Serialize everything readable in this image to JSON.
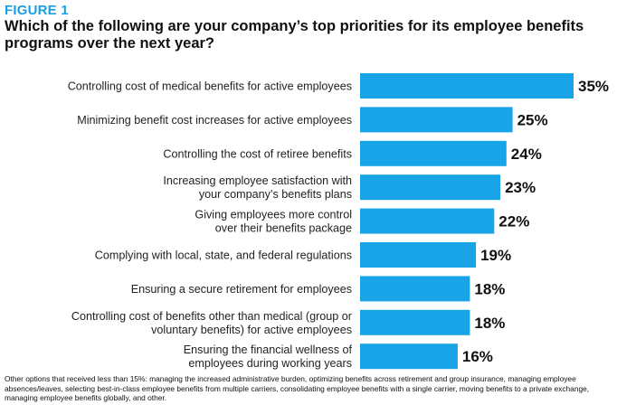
{
  "figure_label": "FIGURE 1",
  "title": "Which of the following are your company’s top priorities for its employee benefits programs over the next year?",
  "footnote": "Other options that received less than 15%: managing the increased administrative burden, optimizing benefits across retirement and group insurance, managing employee absences/leaves, selecting best-in-class employee benefits from multiple carriers, consolidating employee benefits with a single carrier, moving benefits to a private exchange, managing employee benefits globally, and other.",
  "colors": {
    "bar": "#1aa4e8",
    "label_fill": "#222222",
    "value_fill": "#111111",
    "title_fill": "#1a9ee0"
  },
  "chart_data": {
    "type": "bar",
    "orientation": "horizontal",
    "categories": [
      [
        "Controlling cost of medical benefits for active employees"
      ],
      [
        "Minimizing benefit cost increases for active employees"
      ],
      [
        "Controlling the cost of retiree benefits"
      ],
      [
        "Increasing employee satisfaction with",
        "your company’s benefits plans"
      ],
      [
        "Giving employees more control",
        "over their benefits package"
      ],
      [
        "Complying with local, state, and federal regulations"
      ],
      [
        "Ensuring a secure retirement for employees"
      ],
      [
        "Controlling cost of benefits other than medical (group or",
        "voluntary benefits) for active employees"
      ],
      [
        "Ensuring the financial wellness of",
        "employees during working years"
      ]
    ],
    "values": [
      35,
      25,
      24,
      23,
      22,
      19,
      18,
      18,
      16
    ],
    "value_labels": [
      "35%",
      "25%",
      "24%",
      "23%",
      "22%",
      "19%",
      "18%",
      "18%",
      "16%"
    ],
    "xlim": [
      0,
      35
    ]
  }
}
